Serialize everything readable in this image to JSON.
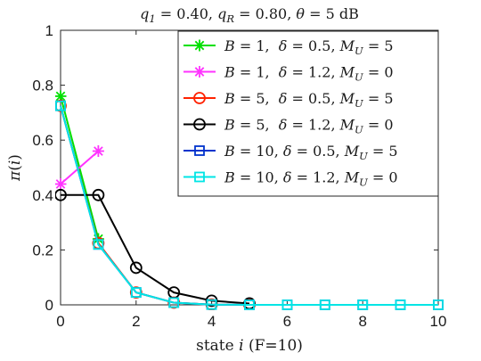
{
  "chart_data": {
    "type": "line",
    "title": "q_1 = 0.40, q_R = 0.80, θ = 5 dB",
    "xlabel": "state i (F=10)",
    "ylabel": "π(i)",
    "xlim": [
      0,
      10
    ],
    "ylim": [
      0,
      1
    ],
    "xticks": [
      "0",
      "2",
      "4",
      "6",
      "8",
      "10"
    ],
    "yticks": [
      "0",
      "0.2",
      "0.4",
      "0.6",
      "0.8",
      "1"
    ],
    "grid": false,
    "legend_position": "top-right",
    "series": [
      {
        "name": "B = 1,  δ = 0.5, M_U = 5",
        "color": "#00e000",
        "marker": "star",
        "x": [
          0,
          1
        ],
        "y": [
          0.76,
          0.24
        ]
      },
      {
        "name": "B = 1,  δ = 1.2, M_U = 0",
        "color": "#ff33ff",
        "marker": "star",
        "x": [
          0,
          1
        ],
        "y": [
          0.44,
          0.56
        ]
      },
      {
        "name": "B = 5,  δ = 0.5, M_U = 5",
        "color": "#ff2200",
        "marker": "circle",
        "x": [
          0,
          1,
          2,
          3,
          4,
          5
        ],
        "y": [
          0.725,
          0.225,
          0.045,
          0.008,
          0.001,
          0.0
        ]
      },
      {
        "name": "B = 5,  δ = 1.2, M_U = 0",
        "color": "#000000",
        "marker": "circle",
        "x": [
          0,
          1,
          2,
          3,
          4,
          5
        ],
        "y": [
          0.4,
          0.4,
          0.135,
          0.045,
          0.015,
          0.005
        ]
      },
      {
        "name": "B = 10, δ = 0.5, M_U = 5",
        "color": "#0033cc",
        "marker": "square",
        "x": [
          0,
          1,
          2,
          3,
          4,
          5,
          6,
          7,
          8,
          9,
          10
        ],
        "y": [
          0.725,
          0.22,
          0.045,
          0.008,
          0.001,
          0.0,
          0.0,
          0.0,
          0.0,
          0.0,
          0.0
        ]
      },
      {
        "name": "B = 10, δ = 1.2, M_U = 0",
        "color": "#00e5e5",
        "marker": "square",
        "x": [
          0,
          1,
          2,
          3,
          4,
          5,
          6,
          7,
          8,
          9,
          10
        ],
        "y": [
          0.725,
          0.22,
          0.045,
          0.008,
          0.001,
          0.0,
          0.0,
          0.0,
          0.0,
          0.0,
          0.0
        ]
      }
    ]
  }
}
